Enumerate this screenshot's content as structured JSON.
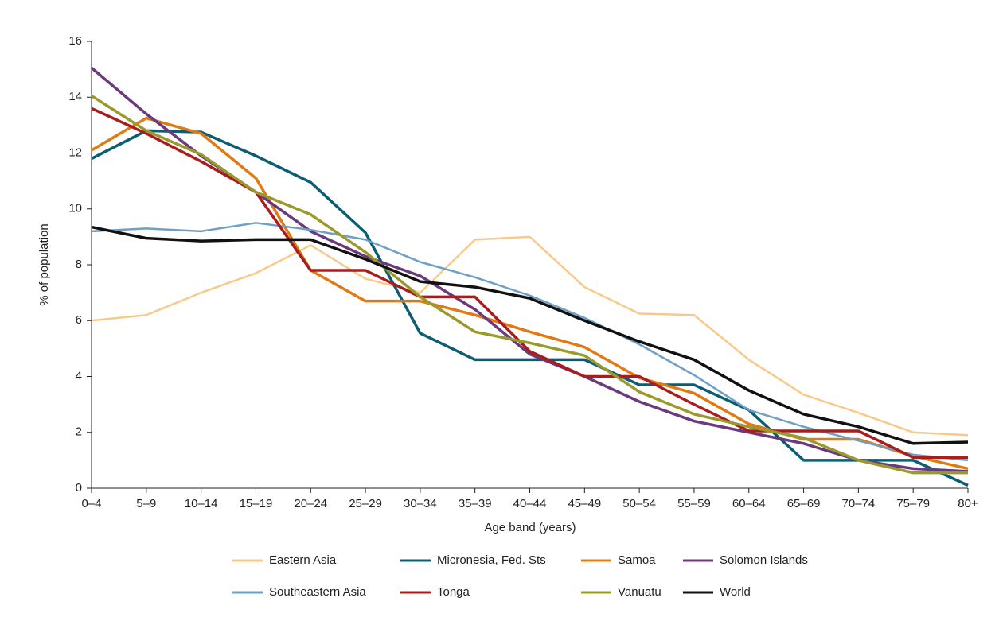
{
  "chart_data": {
    "type": "line",
    "x_label": "Age band (years)",
    "y_label": "% of population",
    "categories": [
      "0–4",
      "5–9",
      "10–14",
      "15–19",
      "20–24",
      "25–29",
      "30–34",
      "35–39",
      "40–44",
      "45–49",
      "50–54",
      "55–59",
      "60–64",
      "65–69",
      "70–74",
      "75–79",
      "80+"
    ],
    "ylim": [
      0,
      16
    ],
    "yticks": [
      0,
      2,
      4,
      6,
      8,
      10,
      12,
      14,
      16
    ],
    "series": [
      {
        "name": "Eastern Asia",
        "color": "#f9c98a",
        "values": [
          6.0,
          6.2,
          7.0,
          7.7,
          8.7,
          7.5,
          7.0,
          8.9,
          9.0,
          7.2,
          6.25,
          6.2,
          4.6,
          3.35,
          2.7,
          2.0,
          1.9
        ]
      },
      {
        "name": "Micronesia, Fed. Sts",
        "color": "#0b5d73",
        "values": [
          11.8,
          12.8,
          12.75,
          11.9,
          10.95,
          9.15,
          5.55,
          4.6,
          4.6,
          4.6,
          3.7,
          3.7,
          2.8,
          1.0,
          1.0,
          1.0,
          0.1
        ]
      },
      {
        "name": "Samoa",
        "color": "#e07b14",
        "values": [
          12.1,
          13.25,
          12.7,
          11.1,
          7.8,
          6.7,
          6.7,
          6.2,
          5.6,
          5.05,
          3.95,
          3.4,
          2.3,
          1.75,
          1.75,
          1.15,
          0.7
        ]
      },
      {
        "name": "Solomon Islands",
        "color": "#6b3a7d",
        "values": [
          15.05,
          13.4,
          11.9,
          10.6,
          9.2,
          8.3,
          7.6,
          6.4,
          4.8,
          4.0,
          3.1,
          2.4,
          2.0,
          1.6,
          1.0,
          0.7,
          0.6
        ]
      },
      {
        "name": "Southeastern Asia",
        "color": "#6f9fc6",
        "values": [
          9.2,
          9.3,
          9.2,
          9.5,
          9.25,
          8.9,
          8.1,
          7.55,
          6.9,
          6.1,
          5.15,
          4.05,
          2.8,
          2.2,
          1.7,
          1.2,
          1.0
        ]
      },
      {
        "name": "Tonga",
        "color": "#a81e1e",
        "values": [
          13.6,
          12.7,
          11.7,
          10.6,
          7.8,
          7.8,
          6.85,
          6.85,
          4.9,
          4.0,
          4.0,
          3.0,
          2.05,
          2.05,
          2.05,
          1.1,
          1.1
        ]
      },
      {
        "name": "Vanuatu",
        "color": "#9a9a2c",
        "values": [
          14.05,
          12.8,
          11.95,
          10.6,
          9.8,
          8.45,
          6.85,
          5.6,
          5.2,
          4.75,
          3.45,
          2.65,
          2.2,
          1.8,
          1.0,
          0.55,
          0.55
        ]
      },
      {
        "name": "World",
        "color": "#111111",
        "values": [
          9.35,
          8.95,
          8.85,
          8.9,
          8.9,
          8.2,
          7.4,
          7.2,
          6.8,
          6.0,
          5.25,
          4.6,
          3.5,
          2.65,
          2.2,
          1.6,
          1.65
        ]
      }
    ]
  }
}
